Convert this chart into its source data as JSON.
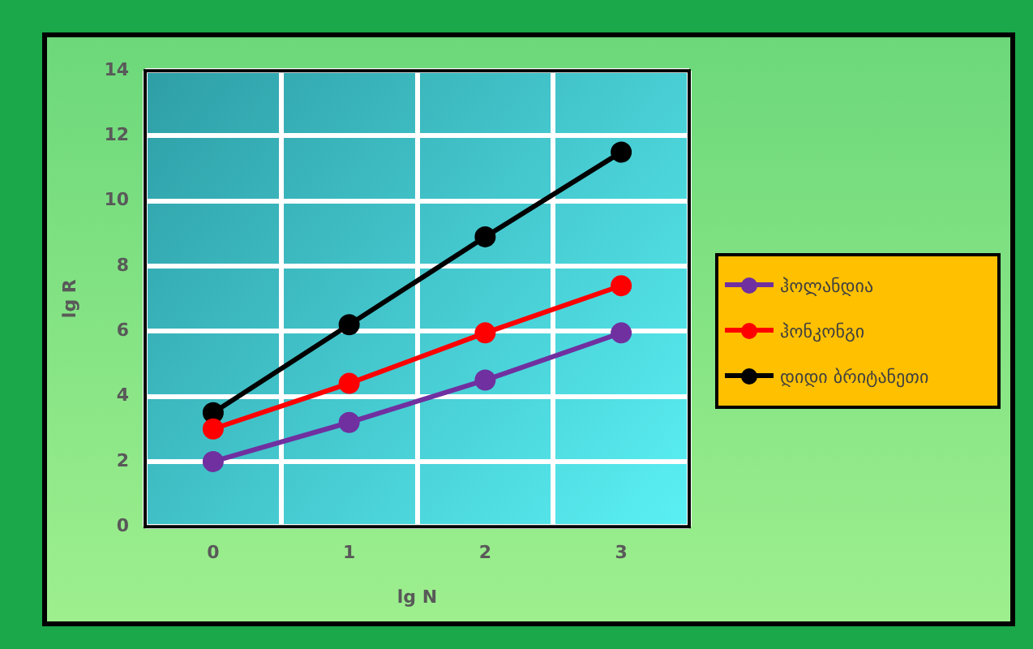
{
  "chart_data": {
    "type": "line",
    "xlabel": "lg N",
    "ylabel": "lg R",
    "categories": [
      "0",
      "1",
      "2",
      "3"
    ],
    "series": [
      {
        "name": "ჰოლანდია",
        "color": "#7030a0",
        "values": [
          2,
          3.2,
          4.5,
          5.95
        ]
      },
      {
        "name": "ჰონკონგი",
        "color": "#ff0000",
        "values": [
          3,
          4.4,
          5.95,
          7.4
        ]
      },
      {
        "name": "დიდი ბრიტანეთი",
        "color": "#000000",
        "values": [
          3.5,
          6.2,
          8.9,
          11.5
        ]
      }
    ],
    "ylim": [
      0,
      14
    ],
    "yticks": [
      0,
      2,
      4,
      6,
      8,
      10,
      12,
      14
    ],
    "grid": true,
    "legend": "right",
    "marker": "circle",
    "line_style": "solid"
  }
}
